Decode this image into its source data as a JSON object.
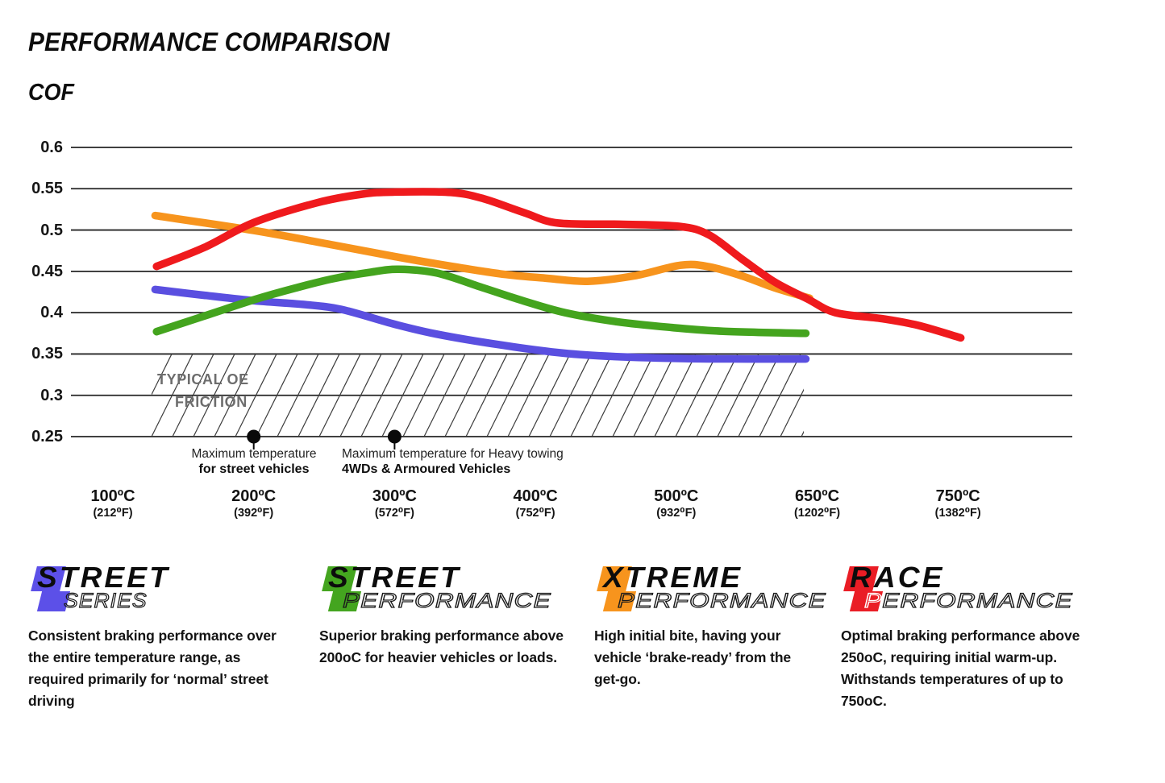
{
  "title": "PERFORMANCE COMPARISON",
  "cof_label": "COF",
  "oe_zone": {
    "line1": "TYPICAL OE",
    "line2": "FRICTION",
    "cof_min": 0.25,
    "cof_max": 0.35,
    "temp_start_c": 128,
    "temp_end_c": 638
  },
  "markers": [
    {
      "temp_c": 200,
      "line1": "Maximum temperature",
      "line2": "for street vehicles"
    },
    {
      "temp_c": 300,
      "line1": "Maximum temperature for Heavy towing",
      "line2": "4WDs & Armoured Vehicles"
    }
  ],
  "chart_data": {
    "type": "line",
    "title": "PERFORMANCE COMPARISON",
    "ylabel": "COF",
    "ylim": [
      0.25,
      0.6
    ],
    "grid": "horizontal",
    "legend_position": "none",
    "y_ticks": [
      "0.6",
      "0.55",
      "0.5",
      "0.45",
      "0.4",
      "0.35",
      "0.3",
      "0.25"
    ],
    "x_ticks": [
      {
        "c": "100ºC",
        "f": "(212⁰F)"
      },
      {
        "c": "200ºC",
        "f": "(392⁰F)"
      },
      {
        "c": "300ºC",
        "f": "(572⁰F)"
      },
      {
        "c": "400ºC",
        "f": "(752⁰F)"
      },
      {
        "c": "500ºC",
        "f": "(932⁰F)"
      },
      {
        "c": "650ºC",
        "f": "(1202⁰F)"
      },
      {
        "c": "750ºC",
        "f": "(1382⁰F)"
      }
    ],
    "series": [
      {
        "name": "Street Series",
        "color": "#5a4fe0",
        "points": [
          [
            130,
            0.428
          ],
          [
            165,
            0.421
          ],
          [
            200,
            0.4145
          ],
          [
            235,
            0.41
          ],
          [
            262,
            0.404
          ],
          [
            300,
            0.386
          ],
          [
            330,
            0.374
          ],
          [
            375,
            0.361
          ],
          [
            420,
            0.351
          ],
          [
            455,
            0.347
          ],
          [
            510,
            0.3445
          ],
          [
            575,
            0.344
          ],
          [
            638,
            0.344
          ]
        ]
      },
      {
        "name": "Street Performance",
        "color": "#44a41e",
        "points": [
          [
            131,
            0.377
          ],
          [
            165,
            0.396
          ],
          [
            200,
            0.4155
          ],
          [
            230,
            0.43
          ],
          [
            256,
            0.441
          ],
          [
            283,
            0.449
          ],
          [
            303,
            0.4525
          ],
          [
            330,
            0.448
          ],
          [
            363,
            0.43
          ],
          [
            392,
            0.414
          ],
          [
            421,
            0.4
          ],
          [
            458,
            0.389
          ],
          [
            497,
            0.382
          ],
          [
            550,
            0.3775
          ],
          [
            638,
            0.375
          ]
        ]
      },
      {
        "name": "Xtreme Performance",
        "color": "#f7941d",
        "points": [
          [
            130,
            0.5175
          ],
          [
            200,
            0.4995
          ],
          [
            256,
            0.482
          ],
          [
            300,
            0.468
          ],
          [
            330,
            0.459
          ],
          [
            375,
            0.447
          ],
          [
            409,
            0.4415
          ],
          [
            437,
            0.438
          ],
          [
            470,
            0.4445
          ],
          [
            505,
            0.4575
          ],
          [
            535,
            0.4555
          ],
          [
            570,
            0.4445
          ],
          [
            605,
            0.43
          ],
          [
            642,
            0.4175
          ]
        ]
      },
      {
        "name": "Race Performance",
        "color": "#ef1a1d",
        "points": [
          [
            131,
            0.456
          ],
          [
            165,
            0.479
          ],
          [
            200,
            0.509
          ],
          [
            245,
            0.533
          ],
          [
            277,
            0.5435
          ],
          [
            300,
            0.546
          ],
          [
            340,
            0.5455
          ],
          [
            363,
            0.538
          ],
          [
            392,
            0.521
          ],
          [
            416,
            0.5085
          ],
          [
            460,
            0.507
          ],
          [
            503,
            0.5045
          ],
          [
            535,
            0.494
          ],
          [
            571,
            0.464
          ],
          [
            605,
            0.437
          ],
          [
            640,
            0.4165
          ],
          [
            663,
            0.4
          ],
          [
            697,
            0.3925
          ],
          [
            722,
            0.3845
          ],
          [
            752,
            0.3695
          ]
        ]
      }
    ]
  },
  "logos": [
    {
      "word1_first": "S",
      "word1_rest": "TREET",
      "word2_first": "S",
      "word2_rest": "ERIES",
      "color": "#5c50e8",
      "description": "Consistent braking performance over the entire temperature range, as required primarily for ‘normal’ street driving"
    },
    {
      "word1_first": "S",
      "word1_rest": "TREET",
      "word2_first": "P",
      "word2_rest": "ERFORMANCE",
      "color": "#44a51f",
      "description": "Superior braking performance above 200oC for heavier vehicles or loads."
    },
    {
      "word1_first": "X",
      "word1_rest": "TREME",
      "word2_first": "P",
      "word2_rest": "ERFORMANCE",
      "color": "#f7941d",
      "description": "High initial bite, having your vehicle ‘brake-ready’ from the get-go."
    },
    {
      "word1_first": "R",
      "word1_rest": "ACE",
      "word2_first": "P",
      "word2_rest": "ERFORMANCE",
      "color": "#ea1d25",
      "description": "Optimal braking performance above 250oC, requiring initial warm-up. Withstands temperatures of up to 750oC."
    }
  ]
}
